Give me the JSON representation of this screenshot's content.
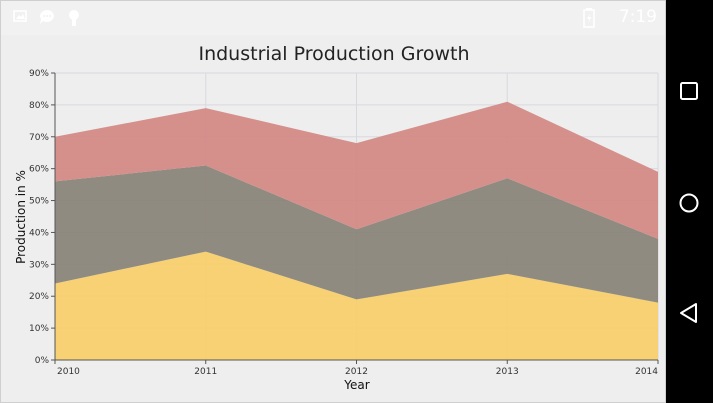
{
  "status_bar": {
    "time": "7:19",
    "left_icons": [
      "image-icon",
      "chat-bubble-icon",
      "android-icon"
    ],
    "right_icons": [
      "battery-icon"
    ]
  },
  "navigation": {
    "buttons": [
      "recents-button",
      "home-button",
      "back-button"
    ]
  },
  "colors": {
    "series_1": "#f7cf6b",
    "series_2": "#8a857a",
    "series_3": "#d38a86",
    "grid": "#d8d8e0",
    "background": "#eeeeee"
  },
  "chart_data": {
    "type": "area",
    "stacked": true,
    "title": "Industrial Production Growth",
    "xlabel": "Year",
    "ylabel": "Production in %",
    "categories": [
      "2010",
      "2011",
      "2012",
      "2013",
      "2014"
    ],
    "series": [
      {
        "values": [
          24,
          34,
          19,
          27,
          18
        ]
      },
      {
        "values": [
          32,
          27,
          22,
          30,
          20
        ]
      },
      {
        "values": [
          14,
          18,
          27,
          24,
          21
        ]
      }
    ],
    "ylim": [
      0,
      90
    ],
    "yticks": [
      "0%",
      "10%",
      "20%",
      "30%",
      "40%",
      "50%",
      "60%",
      "70%",
      "80%",
      "90%"
    ],
    "grid": true,
    "legend": "none"
  }
}
